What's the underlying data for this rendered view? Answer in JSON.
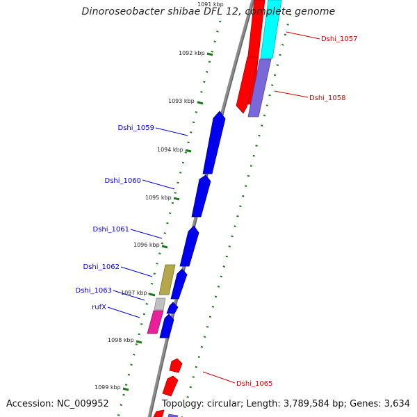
{
  "title": "Dinoroseobacter shibae DFL 12, complete genome",
  "footer": {
    "accession": "Accession: NC_009952",
    "summary": "Topology: circular; Length: 3,789,584 bp; Genes: 3,634"
  },
  "colors": {
    "backbone": "#8c8c8c",
    "tick": "#1a7a1a",
    "reverse_label": "#0000cc",
    "forward_label": "#cc0000"
  },
  "scale_labels": [
    "1091 kbp",
    "1092 kbp",
    "1093 kbp",
    "1094 kbp",
    "1095 kbp",
    "1096 kbp",
    "1097 kbp",
    "1098 kbp",
    "1099 kbp"
  ],
  "genes": [
    {
      "name": "Dshi_1057",
      "color": "#ff0000"
    },
    {
      "name": "Dshi_1058",
      "color": "#ff0000"
    },
    {
      "name": "Dshi_1059",
      "color": "#0000ee"
    },
    {
      "name": "Dshi_1060",
      "color": "#0000ee"
    },
    {
      "name": "Dshi_1061",
      "color": "#0000ee"
    },
    {
      "name": "Dshi_1062",
      "color": "#0000ee"
    },
    {
      "name": "Dshi_1063",
      "color": "#0000ee"
    },
    {
      "name": "rufX",
      "color": "#0000ee"
    },
    {
      "name": "Dshi_1065",
      "color": "#ff0000"
    }
  ],
  "feature_colors": {
    "cyan": "#00ffff",
    "purple": "#7b68d8",
    "olive": "#b5a84a",
    "gray": "#c0c0c0",
    "magenta": "#e8209a"
  }
}
